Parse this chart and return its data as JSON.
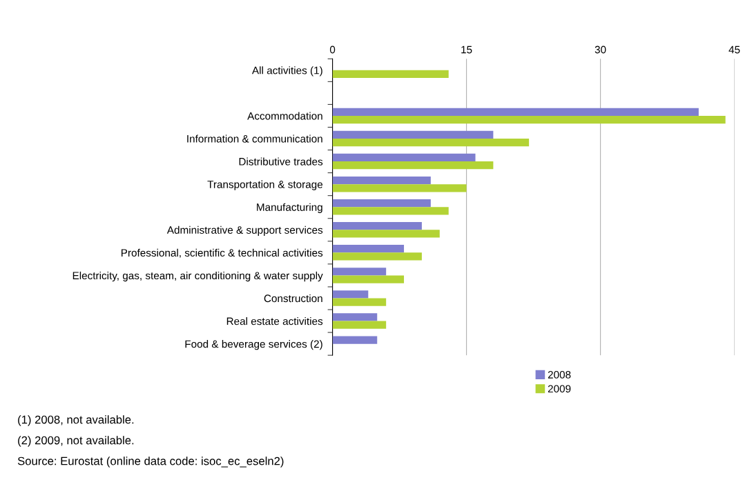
{
  "chart_data": {
    "type": "bar",
    "orientation": "horizontal",
    "categories": [
      "All activities (1)",
      null,
      "Accommodation",
      "Information & communication",
      "Distributive trades",
      "Transportation & storage",
      "Manufacturing",
      "Administrative & support services",
      "Professional, scientific & technical activities",
      "Electricity, gas, steam, air conditioning & water supply",
      "Construction",
      "Real estate activities",
      "Food & beverage services (2)"
    ],
    "series": [
      {
        "name": "2008",
        "color": "#7f7fcf",
        "values": [
          null,
          null,
          41,
          18,
          16,
          11,
          11,
          10,
          8,
          6,
          4,
          5,
          5
        ]
      },
      {
        "name": "2009",
        "color": "#b3d335",
        "values": [
          13,
          null,
          44,
          22,
          18,
          15,
          13,
          12,
          10,
          8,
          6,
          6,
          null
        ]
      }
    ],
    "xlim": [
      0,
      45
    ],
    "xticks": [
      0,
      15,
      30,
      45
    ],
    "grid": "x",
    "legend": "bottom",
    "annotations": [
      "(1) 2008, not available.",
      "(2) 2009, not available.",
      "Source: Eurostat (online data code: isoc_ec_eseln2)"
    ]
  }
}
